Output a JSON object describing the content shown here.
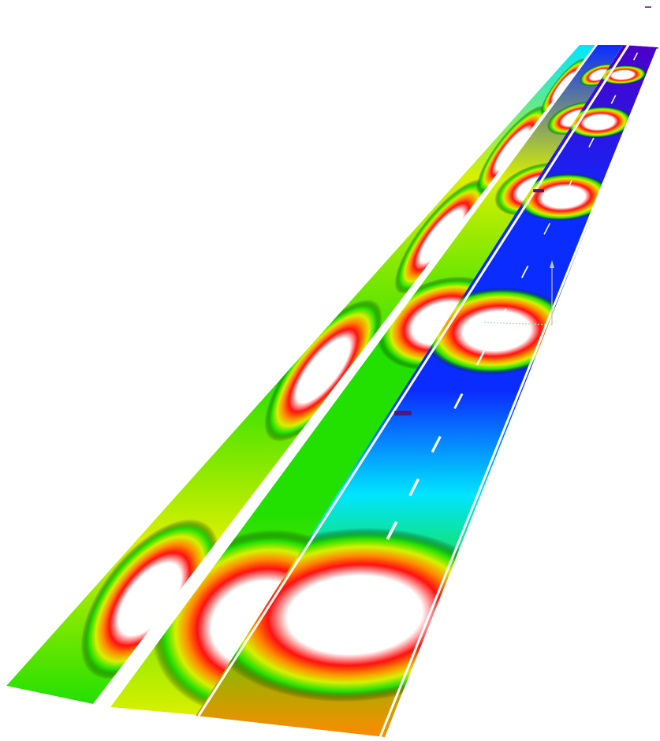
{
  "view": {
    "background": "#ffffff",
    "colormap_stops": [
      "#4b00c8",
      "#0a2cff",
      "#00e5ff",
      "#22e000",
      "#d8f000",
      "#ff8a00",
      "#ff1010",
      "#ffffff"
    ],
    "lane_marking_color": "#ffffff",
    "axis_up_color": "#b8c8b8",
    "axis_left_color": "#9fe09f"
  },
  "scene": {
    "panels": [
      {
        "id": "left-strip",
        "ring_phase": 0.0
      },
      {
        "id": "middle-strip",
        "ring_phase": 0.55
      },
      {
        "id": "right-road",
        "ring_phase": 0.55
      }
    ],
    "road": {
      "lanes": 3,
      "dashed_lane_divider": true
    }
  }
}
